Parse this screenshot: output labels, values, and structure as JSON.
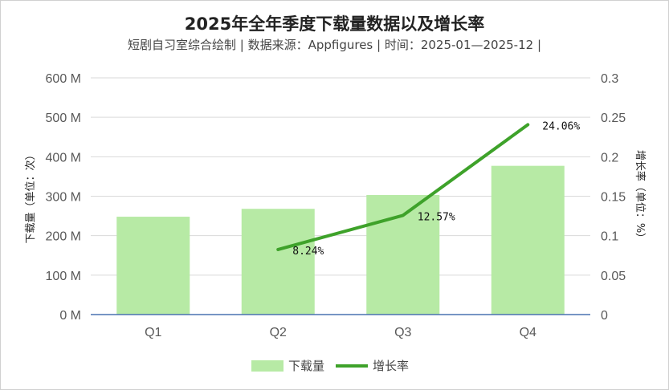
{
  "chart_data": {
    "type": "bar+line",
    "title": "2025年全年季度下载量数据以及增长率",
    "subtitle": "短剧自习室综合绘制 | 数据来源：Appfigures | 时间：2025-01—2025-12 |",
    "categories": [
      "Q1",
      "Q2",
      "Q3",
      "Q4"
    ],
    "series": [
      {
        "name": "下载量",
        "type": "bar",
        "axis": "left",
        "values": [
          248,
          268,
          303,
          377
        ],
        "color": "#b7eaa5"
      },
      {
        "name": "增长率",
        "type": "line",
        "axis": "right",
        "values": [
          null,
          0.0824,
          0.1257,
          0.2406
        ],
        "color": "#3ea22a"
      }
    ],
    "data_labels": [
      null,
      "8.24%",
      "12.57%",
      "24.06%"
    ],
    "y_left": {
      "label": "下载量（单位：次）",
      "ylim": [
        0,
        600
      ],
      "ticks": [
        "0 M",
        "100 M",
        "200 M",
        "300 M",
        "400 M",
        "500 M",
        "600 M"
      ]
    },
    "y_right": {
      "label": "增长率（单位：%）",
      "ylim": [
        0,
        0.3
      ],
      "ticks": [
        "0",
        "0.05",
        "0.1",
        "0.15",
        "0.2",
        "0.25",
        "0.3"
      ]
    },
    "grid": true,
    "legend_position": "bottom",
    "axis_line_color": "#4a72b0"
  }
}
